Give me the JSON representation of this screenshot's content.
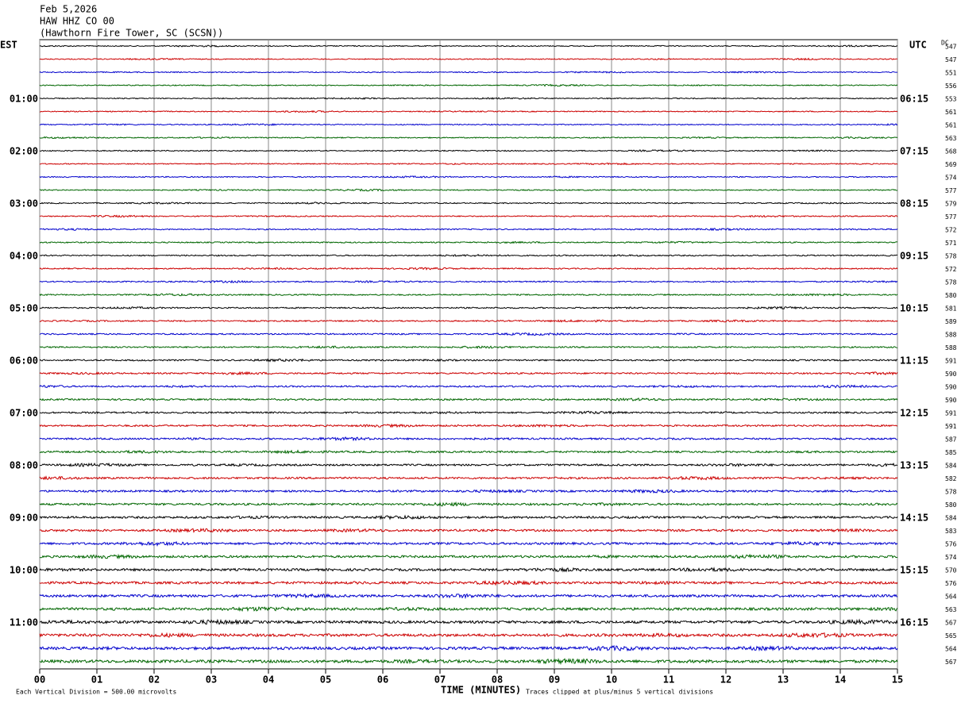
{
  "header": {
    "lines": [
      "Feb 5,2026",
      "HAW HHZ CO 00",
      "(Hawthorn Fire Tower, SC (SCSN))"
    ]
  },
  "left_zone": "EST",
  "right_zone": "UTC",
  "dc_label": "DC",
  "left_times": [
    "01:00",
    "02:00",
    "03:00",
    "04:00",
    "05:00",
    "06:00",
    "07:00",
    "08:00",
    "09:00",
    "10:00",
    "11:00"
  ],
  "right_times": [
    "06:15",
    "07:15",
    "08:15",
    "09:15",
    "10:15",
    "11:15",
    "12:15",
    "13:15",
    "14:15",
    "15:15",
    "16:15"
  ],
  "dc_values": [
    "547",
    "547",
    "551",
    "556",
    "553",
    "561",
    "561",
    "563",
    "568",
    "569",
    "574",
    "577",
    "579",
    "577",
    "572",
    "571",
    "578",
    "572",
    "578",
    "580",
    "581",
    "589",
    "588",
    "588",
    "591",
    "590",
    "590",
    "590",
    "591",
    "591",
    "587",
    "585",
    "584",
    "582",
    "578",
    "580",
    "584",
    "583",
    "576",
    "574",
    "570",
    "576",
    "564",
    "563",
    "567",
    "565",
    "564",
    "567"
  ],
  "x_ticks": [
    "00",
    "01",
    "02",
    "03",
    "04",
    "05",
    "06",
    "07",
    "08",
    "09",
    "10",
    "11",
    "12",
    "13",
    "14",
    "15"
  ],
  "x_label": "TIME (MINUTES)",
  "footer": {
    "scale": "Each Vertical Division =  500.00 microvolts",
    "clip": "Traces clipped at plus/minus 5 vertical divisions"
  }
}
